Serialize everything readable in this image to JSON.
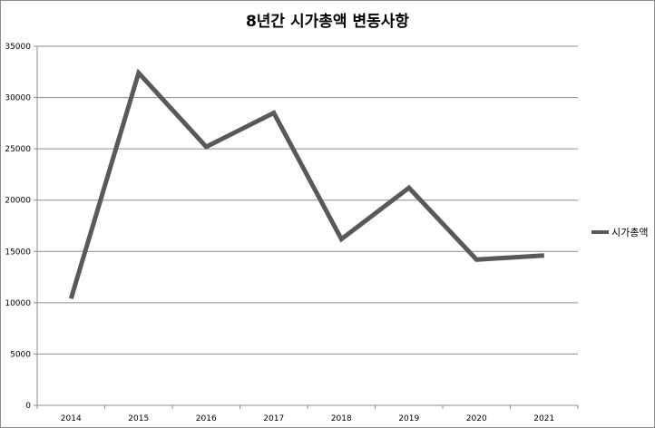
{
  "chart_data": {
    "type": "line",
    "title": "8년간 시가총액 변동사항",
    "xlabel": "",
    "ylabel": "",
    "categories": [
      "2014",
      "2015",
      "2016",
      "2017",
      "2018",
      "2019",
      "2020",
      "2021"
    ],
    "series": [
      {
        "name": "시가총액",
        "values": [
          10400,
          32400,
          25200,
          28500,
          16200,
          21200,
          14200,
          14600
        ],
        "color": "#595959"
      }
    ],
    "ylim": [
      0,
      35000
    ],
    "yticks": [
      "0",
      "5000",
      "10000",
      "15000",
      "20000",
      "25000",
      "30000",
      "35000"
    ],
    "grid": true,
    "legend": "right"
  }
}
